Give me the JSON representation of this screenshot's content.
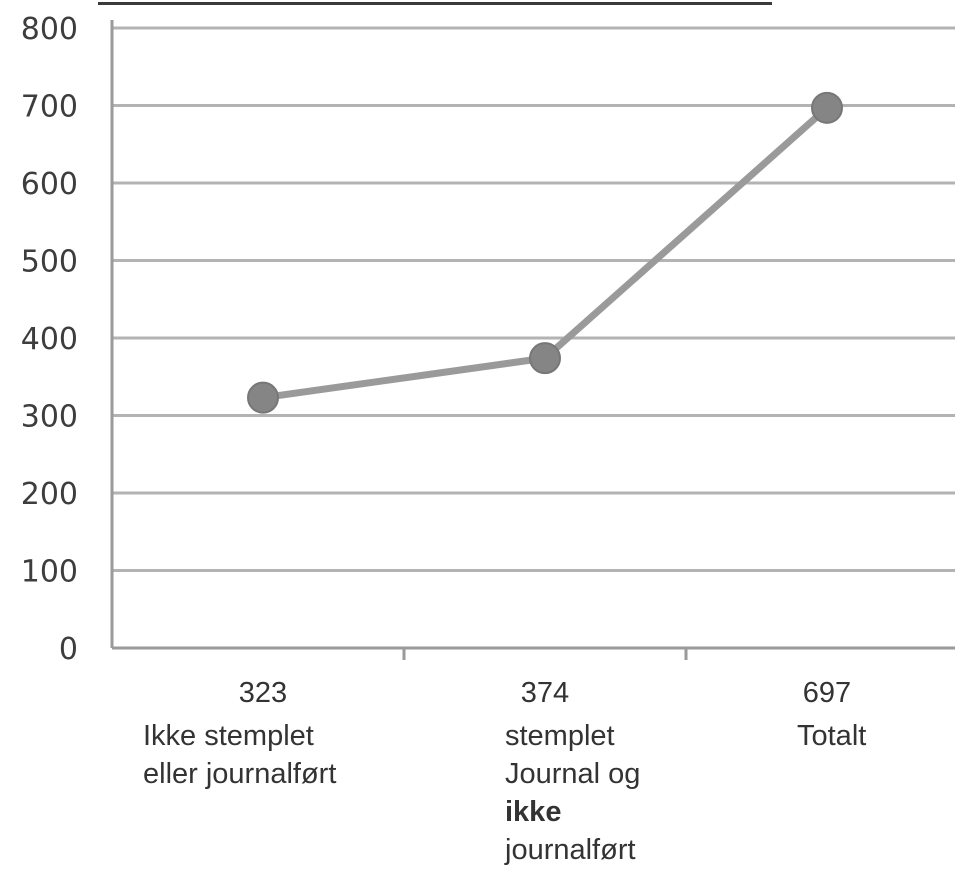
{
  "chart_data": {
    "type": "line",
    "title": "",
    "xlabel": "",
    "ylabel": "",
    "ylim": [
      0,
      800
    ],
    "yticks": [
      0,
      100,
      200,
      300,
      400,
      500,
      600,
      700,
      800
    ],
    "grid": true,
    "legend": "none",
    "categories": [
      {
        "value_label": "323",
        "lines": [
          {
            "text": "Ikke stemplet",
            "bold": false
          },
          {
            "text": "eller journalført",
            "bold": false
          }
        ]
      },
      {
        "value_label": "374",
        "lines": [
          {
            "text": "stemplet",
            "bold": false
          },
          {
            "text": "Journal og",
            "bold": false
          },
          {
            "text": "ikke",
            "bold": true
          },
          {
            "text": "journalført",
            "bold": false
          }
        ]
      },
      {
        "value_label": "697",
        "lines": [
          {
            "text": "Totalt",
            "bold": false
          }
        ]
      }
    ],
    "series": [
      {
        "values": [
          323,
          374,
          697
        ]
      }
    ],
    "colors": {
      "line": "#9a9a9a",
      "marker": "#858585",
      "grid": "#b3b3b3",
      "axis": "#9a9a9a",
      "text": "#333333"
    }
  }
}
